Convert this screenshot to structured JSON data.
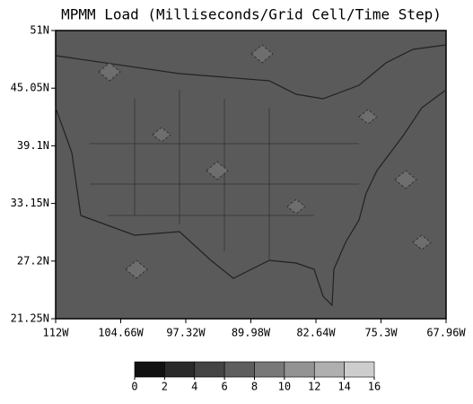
{
  "map": {
    "title": "MPMM Load (Milliseconds/Grid Cell/Time Step)",
    "xlim": [
      -112,
      -67.96
    ],
    "ylim": [
      21.25,
      51
    ],
    "xticks": [
      {
        "value": -112,
        "label": "112W"
      },
      {
        "value": -104.66,
        "label": "104.66W"
      },
      {
        "value": -97.32,
        "label": "97.32W"
      },
      {
        "value": -89.98,
        "label": "89.98W"
      },
      {
        "value": -82.64,
        "label": "82.64W"
      },
      {
        "value": -75.3,
        "label": "75.3W"
      },
      {
        "value": -67.96,
        "label": "67.96W"
      }
    ],
    "yticks": [
      {
        "value": 21.25,
        "label": "21.25N"
      },
      {
        "value": 27.2,
        "label": "27.2N"
      },
      {
        "value": 33.15,
        "label": "33.15N"
      },
      {
        "value": 39.1,
        "label": "39.1N"
      },
      {
        "value": 45.05,
        "label": "45.05N"
      },
      {
        "value": 51,
        "label": "51N"
      }
    ],
    "colorbar": {
      "range": [
        0,
        16
      ],
      "ticks": [
        0,
        2,
        4,
        6,
        8,
        10,
        12,
        14,
        16
      ],
      "colors": [
        "#111111",
        "#2a2a2a",
        "#444444",
        "#5e5e5e",
        "#787878",
        "#939393",
        "#afafaf",
        "#cdcdcd"
      ]
    }
  }
}
